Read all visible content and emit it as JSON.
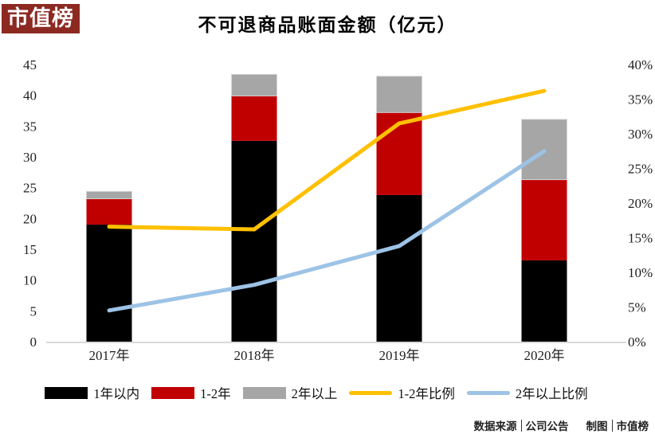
{
  "logo": {
    "text": "市值榜",
    "bg_color": "#8C2A22"
  },
  "title": "不可退商品账面金额（亿元）",
  "chart_data": {
    "type": "bar",
    "subtype": "stacked-columns-with-percentage-lines",
    "title": "不可退商品账面金额（亿元）",
    "categories": [
      "2017年",
      "2018年",
      "2019年",
      "2020年"
    ],
    "bar_series": [
      {
        "name": "1年以内",
        "color": "#000000",
        "values": [
          19.0,
          32.6,
          23.8,
          13.2
        ]
      },
      {
        "name": "1-2年",
        "color": "#C00000",
        "values": [
          4.2,
          7.3,
          13.4,
          13.1
        ]
      },
      {
        "name": "2年以上",
        "color": "#A6A6A6",
        "values": [
          1.2,
          3.5,
          5.9,
          9.8
        ]
      }
    ],
    "line_series": [
      {
        "name": "1-2年比例",
        "color": "#FFC000",
        "axis": "right",
        "values_pct": [
          16.6,
          16.2,
          31.5,
          36.2
        ]
      },
      {
        "name": "2年以上比例",
        "color": "#9DC3E6",
        "axis": "right",
        "values_pct": [
          4.5,
          8.2,
          13.8,
          27.5
        ]
      }
    ],
    "left_axis": {
      "min": 0,
      "max": 45,
      "step": 5,
      "ticks": [
        "0",
        "5",
        "10",
        "15",
        "20",
        "25",
        "30",
        "35",
        "40",
        "45"
      ]
    },
    "right_axis": {
      "min": 0,
      "max": 40,
      "step": 5,
      "ticks": [
        "0%",
        "5%",
        "10%",
        "15%",
        "20%",
        "25%",
        "30%",
        "35%",
        "40%"
      ]
    },
    "grid": false,
    "legend_position": "bottom",
    "axis_line_color": "#D9D9D9"
  },
  "footer": {
    "source_label": "数据来源",
    "source_value": "公司公告",
    "credit_label": "制图",
    "credit_value": "市值榜"
  }
}
